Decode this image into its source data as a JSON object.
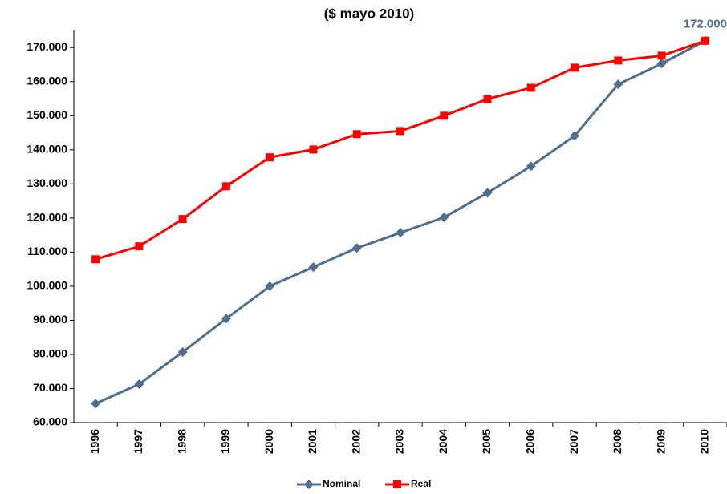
{
  "chart_data": {
    "type": "line",
    "title": "($ mayo 2010)",
    "categories": [
      "1996",
      "1997",
      "1998",
      "1999",
      "2000",
      "2001",
      "2002",
      "2003",
      "2004",
      "2005",
      "2006",
      "2007",
      "2008",
      "2009",
      "2010"
    ],
    "series": [
      {
        "name": "Nominal",
        "color": "#4f6f8f",
        "marker": "diamond",
        "values": [
          65600,
          71300,
          80700,
          90500,
          100000,
          105600,
          111200,
          115700,
          120200,
          127400,
          135200,
          144100,
          159200,
          165300,
          172000
        ],
        "value_labels": [
          null,
          null,
          null,
          null,
          null,
          null,
          null,
          null,
          null,
          null,
          null,
          null,
          null,
          null,
          "172.000"
        ]
      },
      {
        "name": "Real",
        "color": "#ff0000",
        "marker": "square",
        "values": [
          107900,
          111700,
          119700,
          129300,
          137800,
          140100,
          144600,
          145500,
          150000,
          154900,
          158200,
          164100,
          166200,
          167600,
          172000
        ]
      }
    ],
    "ylim": [
      60000,
      175000
    ],
    "yticks": [
      {
        "value": 60000,
        "label": "60.000"
      },
      {
        "value": 70000,
        "label": "70.000"
      },
      {
        "value": 80000,
        "label": "80.000"
      },
      {
        "value": 90000,
        "label": "90.000"
      },
      {
        "value": 100000,
        "label": "100.000"
      },
      {
        "value": 110000,
        "label": "110.000"
      },
      {
        "value": 120000,
        "label": "120.000"
      },
      {
        "value": 130000,
        "label": "130.000"
      },
      {
        "value": 140000,
        "label": "140.000"
      },
      {
        "value": 150000,
        "label": "150.000"
      },
      {
        "value": 160000,
        "label": "160.000"
      },
      {
        "value": 170000,
        "label": "170.000"
      }
    ],
    "grid": false,
    "legend": "bottom"
  }
}
